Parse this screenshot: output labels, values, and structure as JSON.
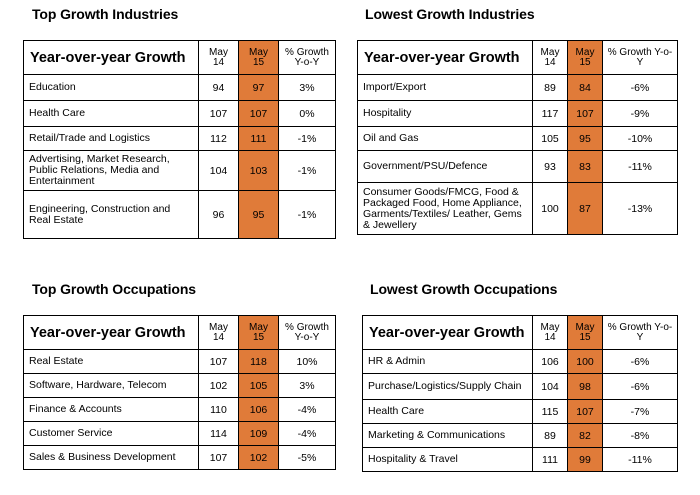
{
  "panels": {
    "top_industries": {
      "title": "Top Growth Industries",
      "header": {
        "label": "Year-over-year Growth",
        "col1": "May 14",
        "col2": "May 15",
        "col3": "% Growth Y-o-Y"
      },
      "rows": [
        {
          "name": "Education",
          "may14": "94",
          "may15": "97",
          "growth": "3%"
        },
        {
          "name": "Health Care",
          "may14": "107",
          "may15": "107",
          "growth": "0%"
        },
        {
          "name": "Retail/Trade and Logistics",
          "may14": "112",
          "may15": "111",
          "growth": "-1%"
        },
        {
          "name": "Advertising, Market Research, Public Relations, Media and Entertainment",
          "may14": "104",
          "may15": "103",
          "growth": "-1%"
        },
        {
          "name": "Engineering, Construction and Real Estate",
          "may14": "96",
          "may15": "95",
          "growth": "-1%"
        }
      ]
    },
    "lowest_industries": {
      "title": "Lowest Growth Industries",
      "header": {
        "label": "Year-over-year Growth",
        "col1": "May 14",
        "col2": "May 15",
        "col3": "% Growth Y-o-Y"
      },
      "rows": [
        {
          "name": "Import/Export",
          "may14": "89",
          "may15": "84",
          "growth": "-6%"
        },
        {
          "name": "Hospitality",
          "may14": "117",
          "may15": "107",
          "growth": "-9%"
        },
        {
          "name": "Oil and Gas",
          "may14": "105",
          "may15": "95",
          "growth": "-10%"
        },
        {
          "name": "Government/PSU/Defence",
          "may14": "93",
          "may15": "83",
          "growth": "-11%"
        },
        {
          "name": "Consumer Goods/FMCG, Food & Packaged Food, Home Appliance, Garments/Textiles/ Leather, Gems & Jewellery",
          "may14": "100",
          "may15": "87",
          "growth": "-13%"
        }
      ]
    },
    "top_occupations": {
      "title": "Top Growth Occupations",
      "header": {
        "label": "Year-over-year Growth",
        "col1": "May 14",
        "col2": "May 15",
        "col3": "% Growth Y-o-Y"
      },
      "rows": [
        {
          "name": "Real Estate",
          "may14": "107",
          "may15": "118",
          "growth": "10%"
        },
        {
          "name": "Software, Hardware, Telecom",
          "may14": "102",
          "may15": "105",
          "growth": "3%"
        },
        {
          "name": "Finance & Accounts",
          "may14": "110",
          "may15": "106",
          "growth": "-4%"
        },
        {
          "name": "Customer Service",
          "may14": "114",
          "may15": "109",
          "growth": "-4%"
        },
        {
          "name": "Sales & Business Development",
          "may14": "107",
          "may15": "102",
          "growth": "-5%"
        }
      ]
    },
    "lowest_occupations": {
      "title": "Lowest Growth Occupations",
      "header": {
        "label": "Year-over-year Growth",
        "col1": "May 14",
        "col2": "May 15",
        "col3": "% Growth Y-o-Y"
      },
      "rows": [
        {
          "name": "HR & Admin",
          "may14": "106",
          "may15": "100",
          "growth": "-6%"
        },
        {
          "name": "Purchase/Logistics/Supply Chain",
          "may14": "104",
          "may15": "98",
          "growth": "-6%"
        },
        {
          "name": "Health Care",
          "may14": "115",
          "may15": "107",
          "growth": "-7%"
        },
        {
          "name": "Marketing & Communications",
          "may14": "89",
          "may15": "82",
          "growth": "-8%"
        },
        {
          "name": "Hospitality & Travel",
          "may14": "111",
          "may15": "99",
          "growth": "-11%"
        }
      ]
    }
  },
  "colors": {
    "highlight": "#e07b39",
    "border": "#000000"
  }
}
